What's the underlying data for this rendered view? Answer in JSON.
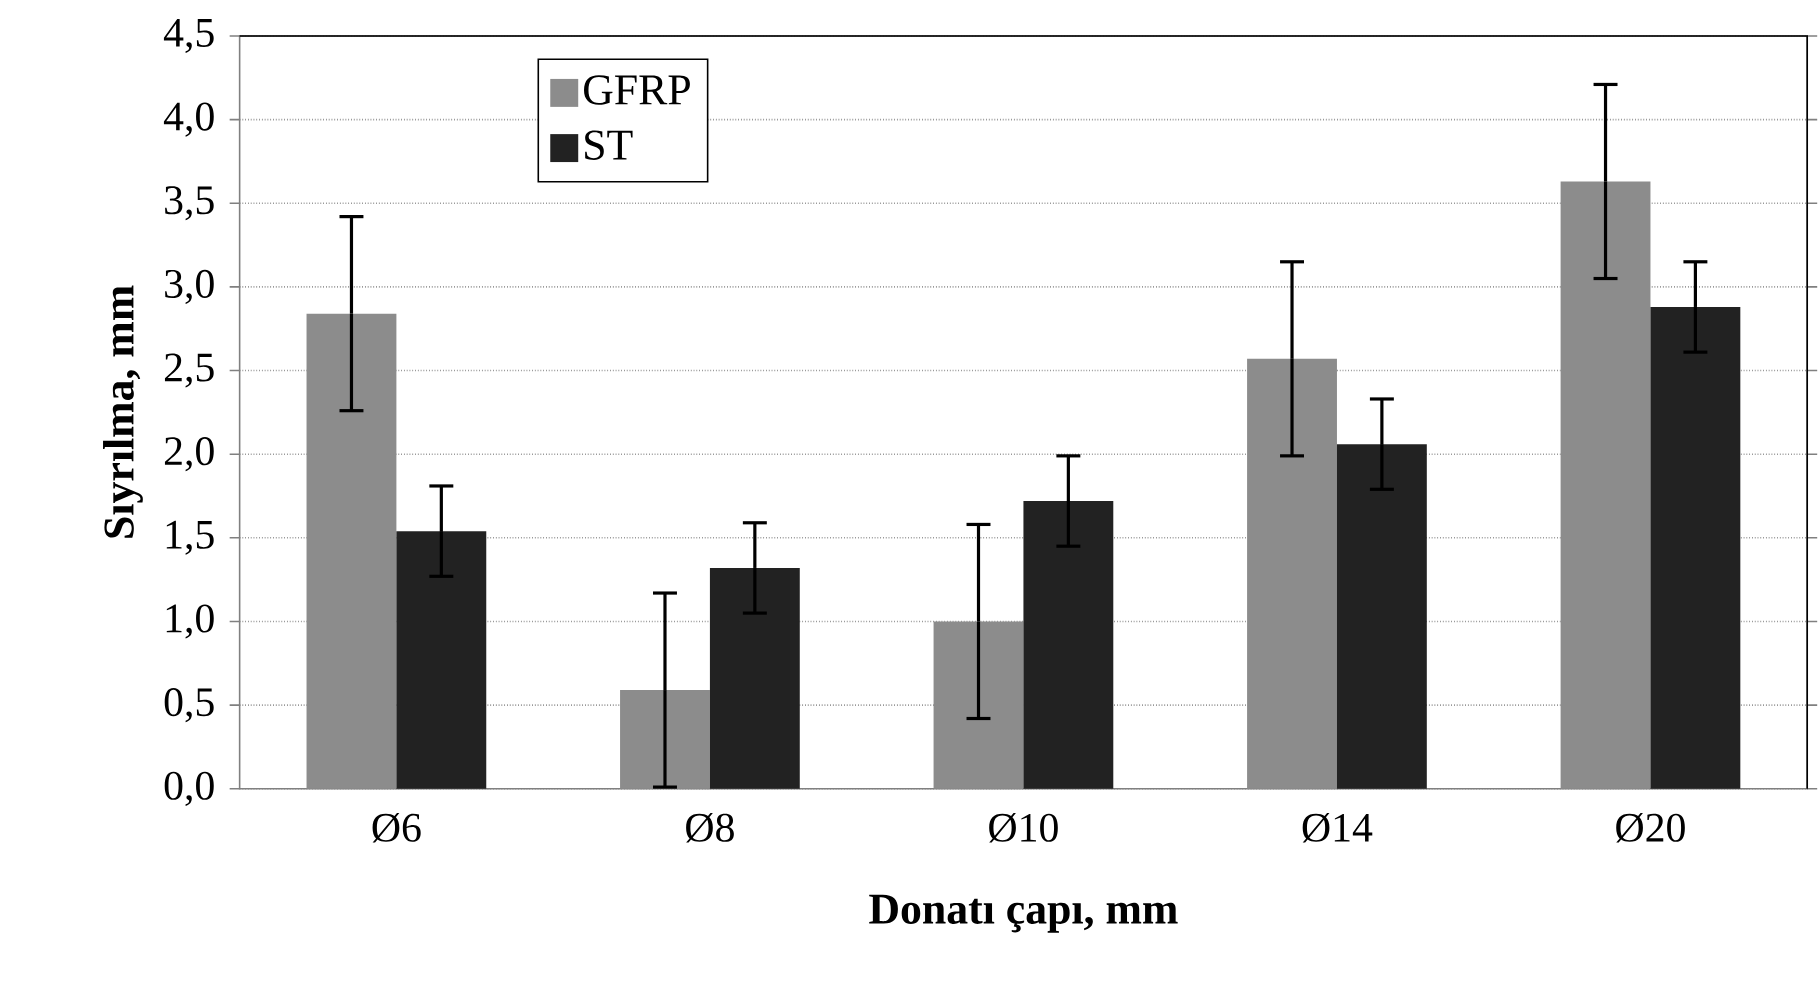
{
  "chart_data": {
    "type": "bar",
    "xlabel": "Donatı çapı, mm",
    "ylabel": "Sıyrılma, mm",
    "categories": [
      "Ø6",
      "Ø8",
      "Ø10",
      "Ø14",
      "Ø20"
    ],
    "series": [
      {
        "name": "GFRP",
        "color": "#8c8c8c",
        "values": [
          2.84,
          0.59,
          1.0,
          2.57,
          3.63
        ],
        "errors": [
          0.58,
          0.58,
          0.58,
          0.58,
          0.58
        ]
      },
      {
        "name": "ST",
        "color": "#222222",
        "values": [
          1.54,
          1.32,
          1.72,
          2.06,
          2.88
        ],
        "errors": [
          0.27,
          0.27,
          0.27,
          0.27,
          0.27
        ]
      }
    ],
    "ylim": [
      0,
      4.5
    ],
    "yticks": [
      {
        "value": 0,
        "label": "0,0"
      },
      {
        "value": 0.5,
        "label": "0,5"
      },
      {
        "value": 1,
        "label": "1,0"
      },
      {
        "value": 1.5,
        "label": "1,5"
      },
      {
        "value": 2,
        "label": "2,0"
      },
      {
        "value": 2.5,
        "label": "2,5"
      },
      {
        "value": 3,
        "label": "3,0"
      },
      {
        "value": 3.5,
        "label": "3,5"
      },
      {
        "value": 4,
        "label": "4,0"
      },
      {
        "value": 4.5,
        "label": "4,5"
      }
    ],
    "grid": "y",
    "legend": "top left"
  }
}
